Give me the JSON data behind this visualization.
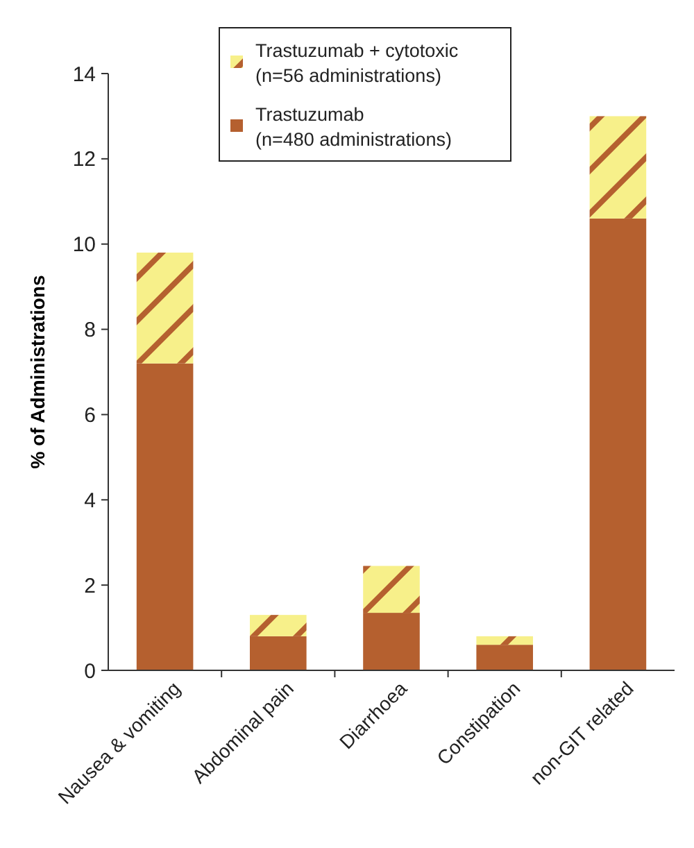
{
  "chart_data": {
    "type": "bar",
    "ylabel": "% of Administrations",
    "categories": [
      "Nausea & vomiting",
      "Abdominal pain",
      "Diarrhoea",
      "Constipation",
      "non-GIT related"
    ],
    "stacked": true,
    "series": [
      {
        "name": "Trastuzumab\n(n=480 administrations)",
        "color": "#b5602f",
        "values": [
          7.2,
          0.8,
          1.35,
          0.6,
          10.6
        ]
      },
      {
        "name": "Trastuzumab + cytotoxic\n(n=56 administrations)",
        "color": "#f7f08a",
        "values": [
          2.6,
          0.5,
          1.1,
          0.2,
          2.4
        ]
      }
    ],
    "ylim": [
      0,
      14
    ],
    "yticks": [
      0,
      2,
      4,
      6,
      8,
      10,
      12,
      14
    ],
    "grid": false,
    "legend": "top"
  }
}
